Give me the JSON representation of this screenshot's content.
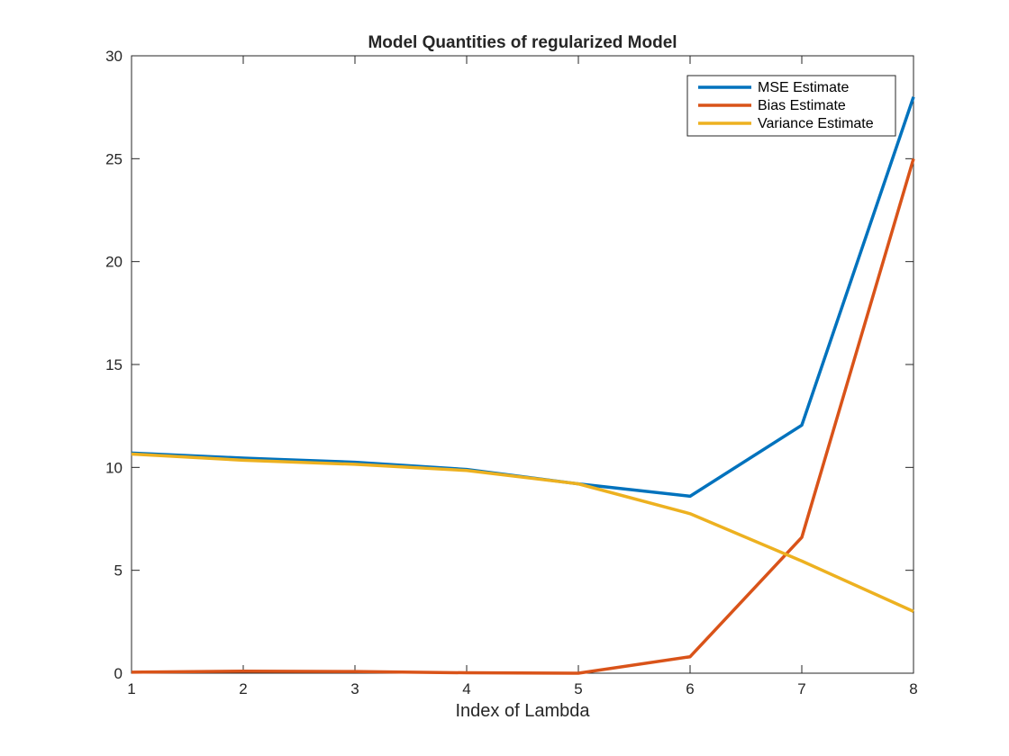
{
  "chart_data": {
    "type": "line",
    "title": "Model Quantities of regularized Model",
    "xlabel": "Index of Lambda",
    "ylabel": "",
    "xlim": [
      1,
      8
    ],
    "ylim": [
      0,
      30
    ],
    "xticks": [
      "1",
      "2",
      "3",
      "4",
      "5",
      "6",
      "7",
      "8"
    ],
    "yticks": [
      "0",
      "5",
      "10",
      "15",
      "20",
      "25",
      "30"
    ],
    "grid": false,
    "legend_position": "top-right",
    "x": [
      1,
      2,
      3,
      4,
      5,
      6,
      7,
      8
    ],
    "series": [
      {
        "name": "MSE Estimate",
        "color": "#0072BD",
        "values": [
          10.7,
          10.45,
          10.25,
          9.9,
          9.2,
          8.6,
          12.05,
          28.0
        ]
      },
      {
        "name": "Bias Estimate",
        "color": "#D95319",
        "values": [
          0.05,
          0.1,
          0.08,
          0.02,
          0.0,
          0.8,
          6.6,
          25.0
        ]
      },
      {
        "name": "Variance Estimate",
        "color": "#EDB120",
        "values": [
          10.65,
          10.35,
          10.15,
          9.85,
          9.2,
          7.75,
          5.45,
          3.0
        ]
      }
    ]
  }
}
